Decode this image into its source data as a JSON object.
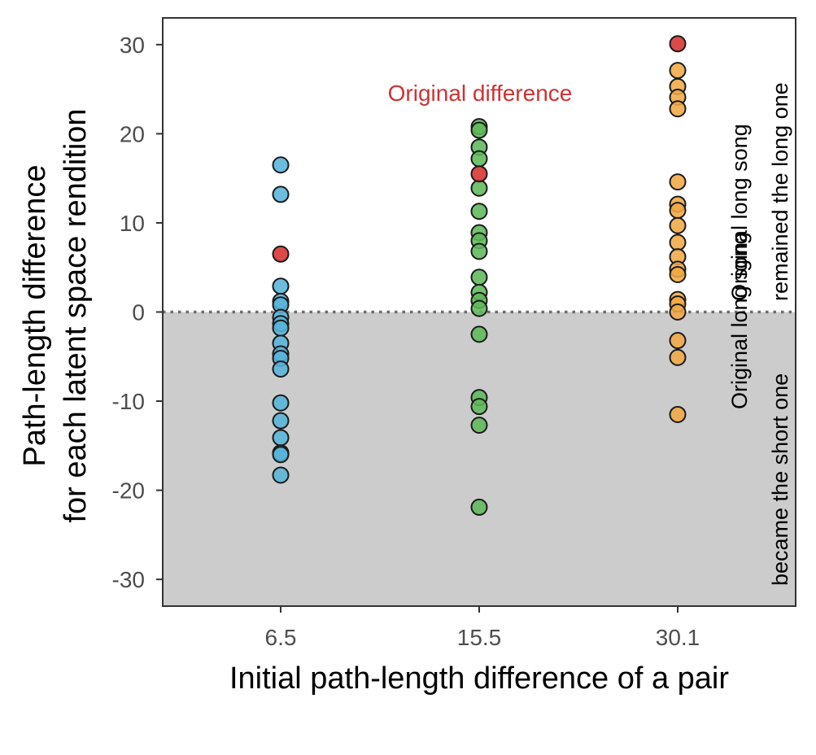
{
  "chart_data": {
    "type": "scatter",
    "xlabel": "Initial path-length difference of a pair",
    "ylabel_lines": [
      "Path-length difference",
      "for each latent space rendition"
    ],
    "categories": [
      "6.5",
      "15.5",
      "30.1"
    ],
    "ylim": [
      -33,
      33
    ],
    "yticks": [
      30,
      20,
      10,
      0,
      -10,
      -20,
      -30
    ],
    "grid": false,
    "reference_line": {
      "y": 0,
      "style": "dotted"
    },
    "shaded_region": {
      "from": -33,
      "to": 0,
      "color": "#cccccc"
    },
    "annotation": {
      "text": "Original difference",
      "color": "#cc3333"
    },
    "region_labels": {
      "upper": [
        "Original long song",
        "remained the long one"
      ],
      "lower": [
        "Original long song",
        "became the short one"
      ]
    },
    "colors": {
      "6.5": "#56b4d9",
      "15.5": "#5fb85a",
      "30.1": "#f0a943",
      "original": "#d7312e"
    },
    "series": [
      {
        "category": "6.5",
        "values": [
          16.5,
          13.2,
          2.9,
          1.2,
          0.8,
          -0.6,
          -1.3,
          -1.8,
          -3.5,
          -4.7,
          -5.2,
          -6.4,
          -10.2,
          -12.2,
          -14.1,
          -15.8,
          -16.0,
          -18.3
        ],
        "original": 6.5
      },
      {
        "category": "15.5",
        "values": [
          20.8,
          20.4,
          18.5,
          17.2,
          13.9,
          11.3,
          8.9,
          8.0,
          6.8,
          3.9,
          2.2,
          1.3,
          0.4,
          -2.5,
          -9.6,
          -10.6,
          -12.7,
          -21.9
        ],
        "original": 15.5
      },
      {
        "category": "30.1",
        "values": [
          27.1,
          25.3,
          24.1,
          22.8,
          14.6,
          12.1,
          11.4,
          9.7,
          7.8,
          6.2,
          4.8,
          4.2,
          1.4,
          0.9,
          0.0,
          -3.2,
          -5.1,
          -11.5
        ],
        "original": 30.1
      }
    ]
  }
}
